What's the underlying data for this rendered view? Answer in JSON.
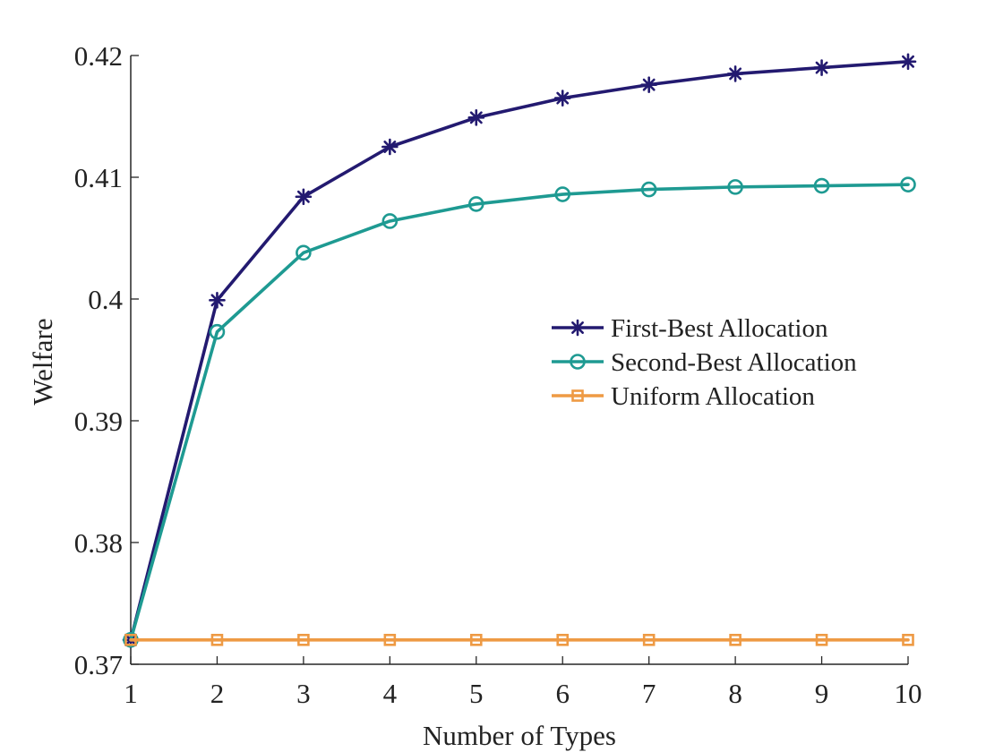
{
  "chart_data": {
    "type": "line",
    "title": "",
    "xlabel": "Number of Types",
    "ylabel": "Welfare",
    "x": [
      1,
      2,
      3,
      4,
      5,
      6,
      7,
      8,
      9,
      10
    ],
    "xlim": [
      1,
      10
    ],
    "ylim": [
      0.37,
      0.42
    ],
    "xticks": [
      1,
      2,
      3,
      4,
      5,
      6,
      7,
      8,
      9,
      10
    ],
    "xtick_labels": [
      "1",
      "2",
      "3",
      "4",
      "5",
      "6",
      "7",
      "8",
      "9",
      "10"
    ],
    "yticks": [
      0.37,
      0.38,
      0.39,
      0.4,
      0.41,
      0.42
    ],
    "ytick_labels": [
      "0.37",
      "0.38",
      "0.39",
      "0.4",
      "0.41",
      "0.42"
    ],
    "grid": false,
    "legend_position": "center-right",
    "series": [
      {
        "name": "First-Best Allocation",
        "color": "#231A70",
        "marker": "asterisk",
        "values": [
          0.372,
          0.3999,
          0.4084,
          0.4125,
          0.4149,
          0.4165,
          0.4176,
          0.4185,
          0.419,
          0.4195
        ]
      },
      {
        "name": "Second-Best Allocation",
        "color": "#1E9A92",
        "marker": "circle",
        "values": [
          0.372,
          0.3973,
          0.4038,
          0.4064,
          0.4078,
          0.4086,
          0.409,
          0.4092,
          0.4093,
          0.4094
        ]
      },
      {
        "name": "Uniform Allocation",
        "color": "#EE9A44",
        "marker": "square",
        "values": [
          0.372,
          0.372,
          0.372,
          0.372,
          0.372,
          0.372,
          0.372,
          0.372,
          0.372,
          0.372
        ]
      }
    ]
  }
}
